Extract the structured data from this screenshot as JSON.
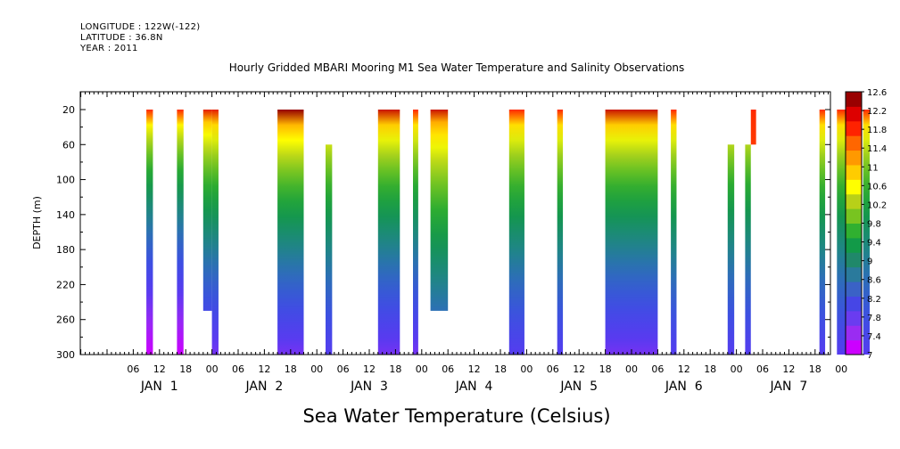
{
  "header": {
    "longitude": "LONGITUDE : 122W(-122)",
    "latitude": "LATITUDE : 36.8N",
    "year": "YEAR : 2011"
  },
  "chart_data": {
    "type": "heatmap",
    "title": "Hourly Gridded MBARI Mooring M1 Sea Water Temperature and Salinity Observations",
    "xlabel": "Sea Water Temperature (Celsius)",
    "ylabel": "DEPTH (m)",
    "xlim_hours": [
      0,
      168
    ],
    "ylim": [
      300,
      0
    ],
    "x_tick_labels": [
      "06",
      "12",
      "18",
      "00",
      "06",
      "12",
      "18",
      "00",
      "06",
      "12",
      "18",
      "00",
      "06",
      "12",
      "18",
      "00",
      "06",
      "12",
      "18",
      "00",
      "06",
      "12",
      "18",
      "00",
      "06",
      "12",
      "18",
      "00"
    ],
    "x_day_labels": [
      "JAN  1",
      "JAN  2",
      "JAN  3",
      "JAN  4",
      "JAN  5",
      "JAN  6",
      "JAN  7"
    ],
    "y_ticks": [
      20,
      60,
      100,
      140,
      180,
      220,
      260,
      300
    ],
    "colorbar": {
      "levels": [
        "7",
        "7.4",
        "7.8",
        "8.2",
        "8.6",
        "9",
        "9.4",
        "9.8",
        "10.2",
        "10.6",
        "11",
        "11.4",
        "11.8",
        "12.2",
        "12.6"
      ],
      "colors": [
        "#cc00ff",
        "#9a2cf2",
        "#6a3cf0",
        "#4646e6",
        "#3a62c6",
        "#2a7a9c",
        "#20886a",
        "#129a48",
        "#30b030",
        "#78c420",
        "#b8d018",
        "#ffff00",
        "#ffcc00",
        "#ff9900",
        "#ff6600",
        "#ff2200",
        "#dd0000",
        "#990000"
      ]
    },
    "data_segments": [
      {
        "start_hour": 9,
        "end_hour": 10.5,
        "max_depth": 300,
        "top_temp": 12.2,
        "bottom_temp": 7.0
      },
      {
        "start_hour": 16,
        "end_hour": 17.5,
        "max_depth": 300,
        "top_temp": 12.2,
        "bottom_temp": 7.0
      },
      {
        "start_hour": 22,
        "end_hour": 24,
        "max_depth": 250,
        "top_temp": 12.3,
        "bottom_temp": 7.6
      },
      {
        "start_hour": 24,
        "end_hour": 25.5,
        "max_depth": 300,
        "top_temp": 12.3,
        "bottom_temp": 7.6
      },
      {
        "start_hour": 39,
        "end_hour": 45,
        "max_depth": 300,
        "top_temp": 12.6,
        "bottom_temp": 7.6
      },
      {
        "start_hour": 50,
        "end_hour": 51.5,
        "start_depth": 60,
        "max_depth": 300,
        "top_temp": 12.2,
        "bottom_temp": 7.8
      },
      {
        "start_hour": 62,
        "end_hour": 67,
        "max_depth": 300,
        "top_temp": 12.4,
        "bottom_temp": 7.6
      },
      {
        "start_hour": 70,
        "end_hour": 71.2,
        "max_depth": 300,
        "top_temp": 12.2,
        "bottom_temp": 7.6
      },
      {
        "start_hour": 74,
        "end_hour": 78,
        "max_depth": 250,
        "top_temp": 12.4,
        "bottom_temp": 8.2
      },
      {
        "start_hour": 92,
        "end_hour": 95.5,
        "max_depth": 300,
        "top_temp": 12.2,
        "bottom_temp": 7.8
      },
      {
        "start_hour": 103,
        "end_hour": 104.3,
        "max_depth": 300,
        "top_temp": 12.2,
        "bottom_temp": 7.8
      },
      {
        "start_hour": 114,
        "end_hour": 126,
        "max_depth": 300,
        "top_temp": 12.4,
        "bottom_temp": 7.6
      },
      {
        "start_hour": 129,
        "end_hour": 130.3,
        "max_depth": 300,
        "top_temp": 12.2,
        "bottom_temp": 7.8
      },
      {
        "start_hour": 142,
        "end_hour": 143.5,
        "start_depth": 60,
        "max_depth": 300,
        "top_temp": 12.0,
        "bottom_temp": 7.8
      },
      {
        "start_hour": 146,
        "end_hour": 147.3,
        "start_depth": 60,
        "max_depth": 300,
        "top_temp": 12.0,
        "bottom_temp": 7.8
      },
      {
        "start_hour": 147.3,
        "end_hour": 148.5,
        "max_depth": 60,
        "top_temp": 12.2,
        "bottom_temp": 12.0
      },
      {
        "start_hour": 163,
        "end_hour": 164.3,
        "max_depth": 300,
        "top_temp": 12.2,
        "bottom_temp": 7.8
      },
      {
        "start_hour": 167,
        "end_hour": 169,
        "max_depth": 300,
        "top_temp": 12.2,
        "bottom_temp": 7.8
      },
      {
        "start_hour": 173,
        "end_hour": 174.5,
        "max_depth": 300,
        "top_temp": 12.2,
        "bottom_temp": 7.8
      }
    ]
  }
}
